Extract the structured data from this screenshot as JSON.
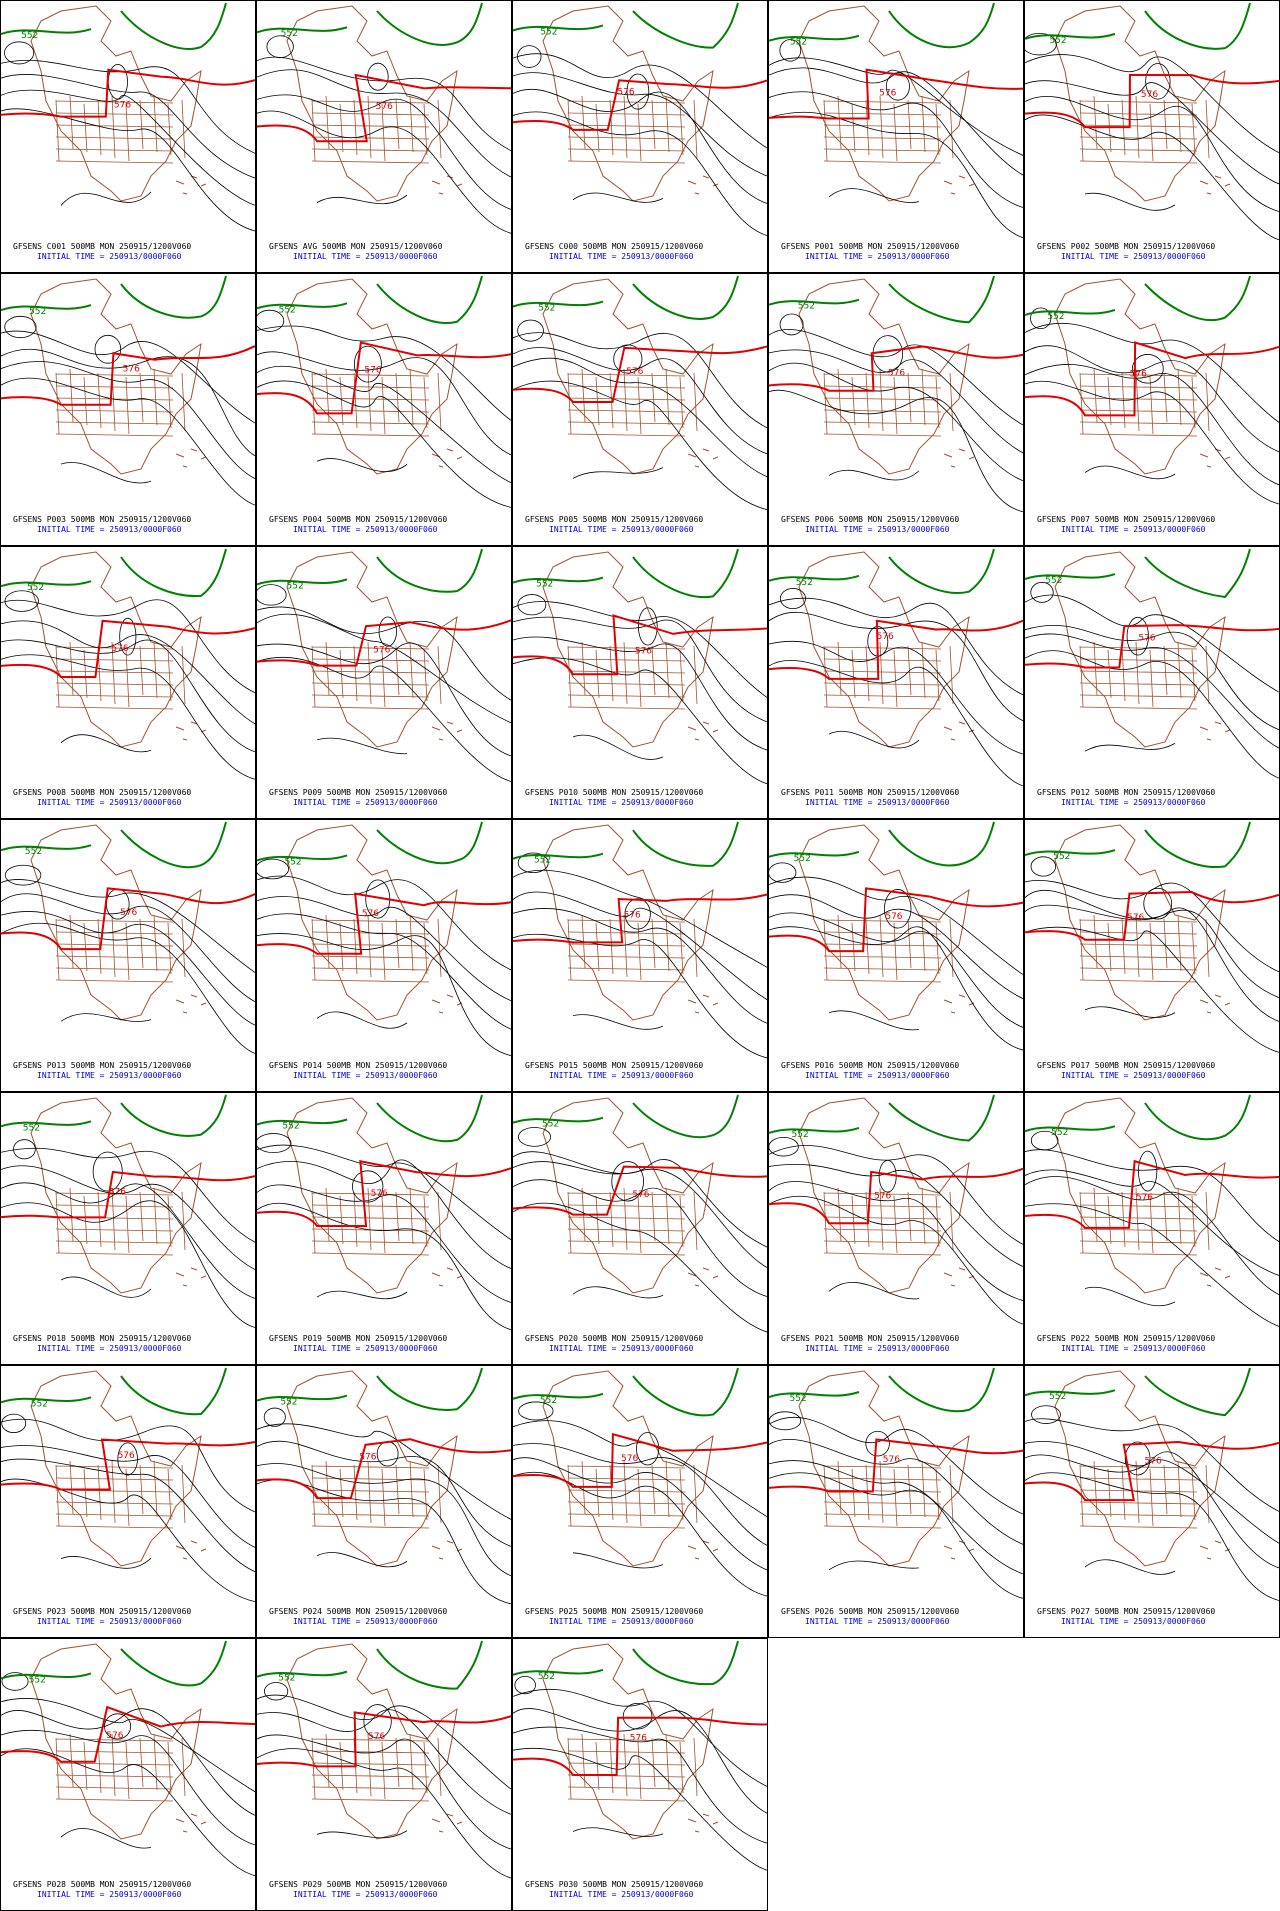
{
  "initial_time": "INITIAL TIME = 250913/0000F060",
  "contour_labels": {
    "green": "552",
    "red": "576"
  },
  "panels": [
    {
      "title": "GFSENS C001 500MB MON 250915/1200V060"
    },
    {
      "title": "GFSENS AVG 500MB MON 250915/1200V060"
    },
    {
      "title": "GFSENS C000 500MB MON 250915/1200V060"
    },
    {
      "title": "GFSENS P001 500MB MON 250915/1200V060"
    },
    {
      "title": "GFSENS P002 500MB MON 250915/1200V060"
    },
    {
      "title": "GFSENS P003 500MB MON 250915/1200V060"
    },
    {
      "title": "GFSENS P004 500MB MON 250915/1200V060"
    },
    {
      "title": "GFSENS P005 500MB MON 250915/1200V060"
    },
    {
      "title": "GFSENS P006 500MB MON 250915/1200V060"
    },
    {
      "title": "GFSENS P007 500MB MON 250915/1200V060"
    },
    {
      "title": "GFSENS P008 500MB MON 250915/1200V060"
    },
    {
      "title": "GFSENS P009 500MB MON 250915/1200V060"
    },
    {
      "title": "GFSENS P010 500MB MON 250915/1200V060"
    },
    {
      "title": "GFSENS P011 500MB MON 250915/1200V060"
    },
    {
      "title": "GFSENS P012 500MB MON 250915/1200V060"
    },
    {
      "title": "GFSENS P013 500MB MON 250915/1200V060"
    },
    {
      "title": "GFSENS P014 500MB MON 250915/1200V060"
    },
    {
      "title": "GFSENS P015 500MB MON 250915/1200V060"
    },
    {
      "title": "GFSENS P016 500MB MON 250915/1200V060"
    },
    {
      "title": "GFSENS P017 500MB MON 250915/1200V060"
    },
    {
      "title": "GFSENS P018 500MB MON 250915/1200V060"
    },
    {
      "title": "GFSENS P019 500MB MON 250915/1200V060"
    },
    {
      "title": "GFSENS P020 500MB MON 250915/1200V060"
    },
    {
      "title": "GFSENS P021 500MB MON 250915/1200V060"
    },
    {
      "title": "GFSENS P022 500MB MON 250915/1200V060"
    },
    {
      "title": "GFSENS P023 500MB MON 250915/1200V060"
    },
    {
      "title": "GFSENS P024 500MB MON 250915/1200V060"
    },
    {
      "title": "GFSENS P025 500MB MON 250915/1200V060"
    },
    {
      "title": "GFSENS P026 500MB MON 250915/1200V060"
    },
    {
      "title": "GFSENS P027 500MB MON 250915/1200V060"
    },
    {
      "title": "GFSENS P028 500MB MON 250915/1200V060"
    },
    {
      "title": "GFSENS P029 500MB MON 250915/1200V060"
    },
    {
      "title": "GFSENS P030 500MB MON 250915/1200V060"
    }
  ]
}
